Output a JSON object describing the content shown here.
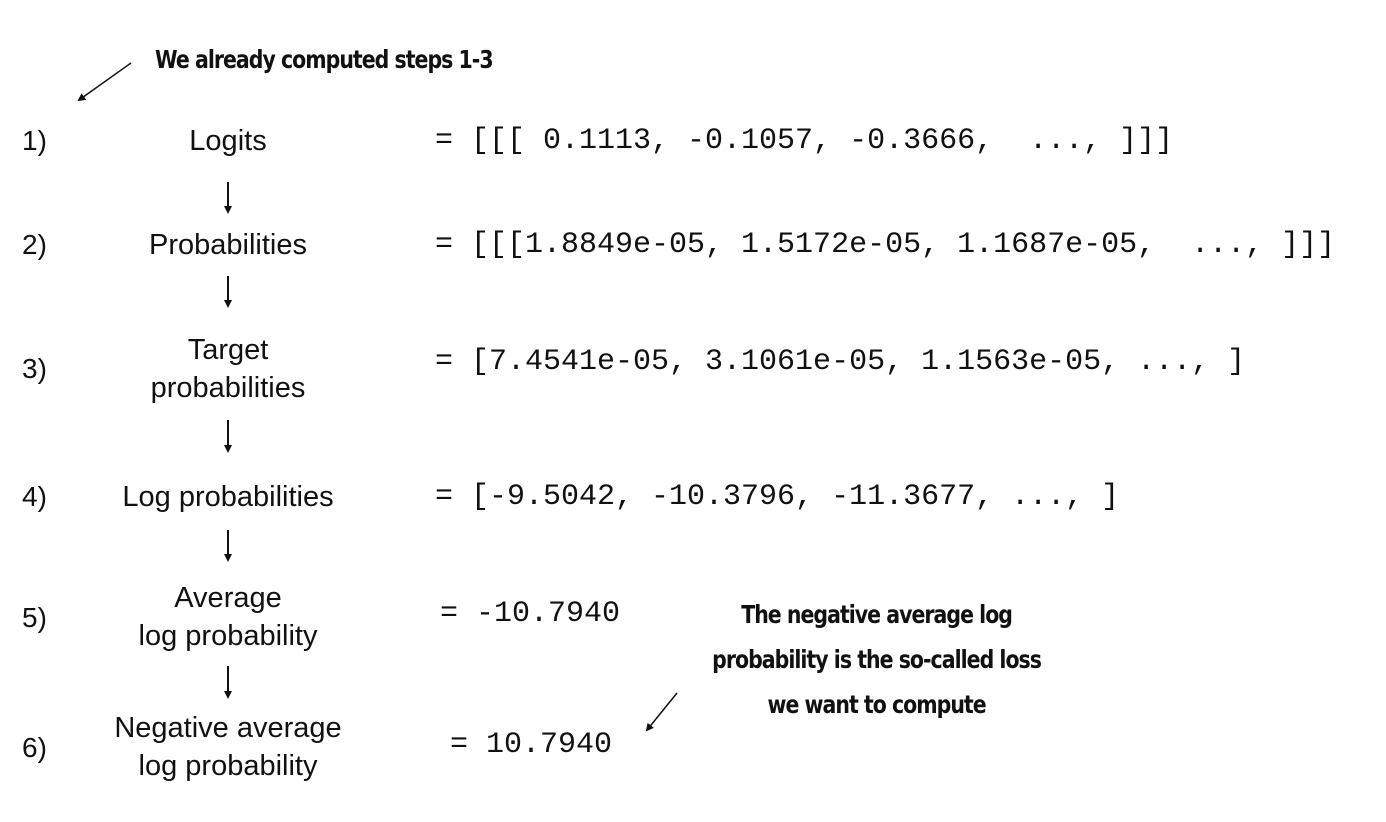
{
  "annotations": {
    "top": "We already computed steps 1-3",
    "bottom": [
      "The negative average log",
      "probability is the so-called loss",
      "we want to compute"
    ]
  },
  "steps": [
    {
      "number": "1)",
      "label": [
        "Logits"
      ],
      "value": "= [[[ 0.1113, -0.1057, -0.3666,  ..., ]]]"
    },
    {
      "number": "2)",
      "label": [
        "Probabilities"
      ],
      "value": "= [[[1.8849e-05, 1.5172e-05, 1.1687e-05,  ..., ]]]"
    },
    {
      "number": "3)",
      "label": [
        "Target",
        "probabilities"
      ],
      "value": "= [7.4541e-05, 3.1061e-05, 1.1563e-05, ..., ]"
    },
    {
      "number": "4)",
      "label": [
        "Log probabilities"
      ],
      "value": "= [-9.5042, -10.3796, -11.3677, ..., ]"
    },
    {
      "number": "5)",
      "label": [
        "Average",
        "log probability"
      ],
      "value": "= -10.7940"
    },
    {
      "number": "6)",
      "label": [
        "Negative average",
        "log probability"
      ],
      "value": "= 10.7940"
    }
  ]
}
